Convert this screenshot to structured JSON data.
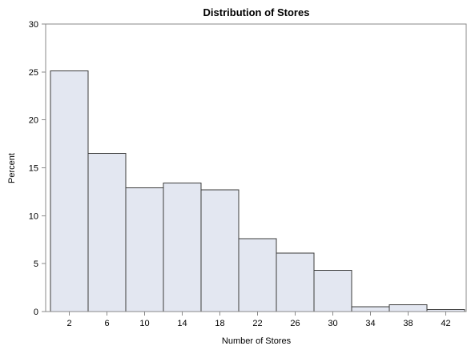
{
  "chart_data": {
    "type": "bar",
    "title": "Distribution of Stores",
    "xlabel": "Number of Stores",
    "ylabel": "Percent",
    "categories": [
      "2",
      "6",
      "10",
      "14",
      "18",
      "22",
      "26",
      "30",
      "34",
      "38",
      "42"
    ],
    "values": [
      25.1,
      16.5,
      12.9,
      13.4,
      12.7,
      7.6,
      6.1,
      4.3,
      0.5,
      0.7,
      0.2
    ],
    "ylim": [
      0,
      30
    ],
    "yticks": [
      0,
      5,
      10,
      15,
      20,
      25,
      30
    ],
    "grid": false,
    "bar_fill": "#e3e7f1",
    "bar_stroke": "#3c3c3c",
    "axis_color": "#8a8a8a"
  }
}
